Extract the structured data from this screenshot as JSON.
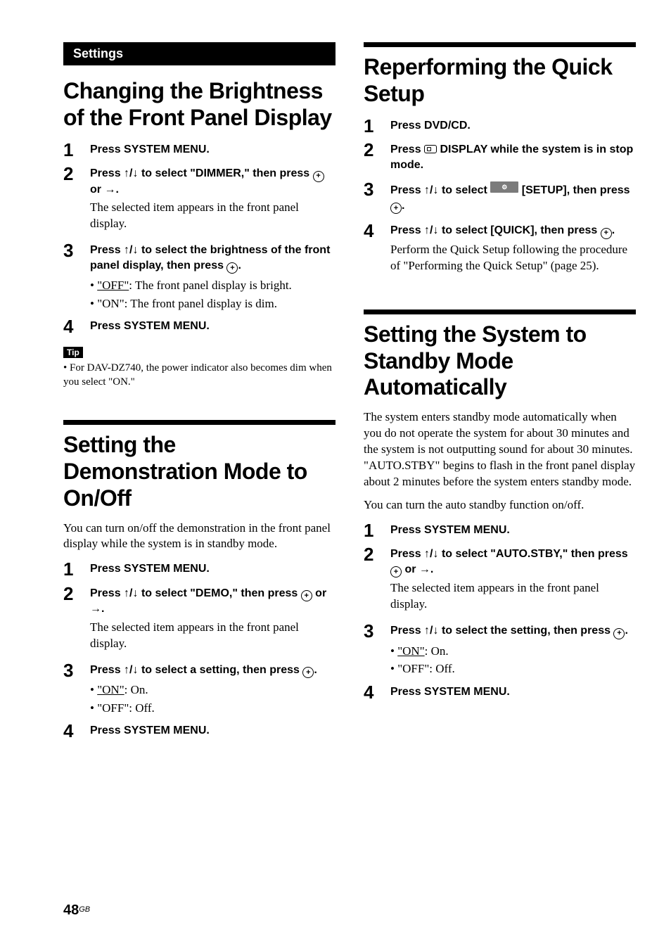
{
  "tab": {
    "label": "Settings"
  },
  "left": {
    "sec1": {
      "title": "Changing the Brightness of the Front Panel Display",
      "steps": {
        "s1": {
          "head": "Press SYSTEM MENU."
        },
        "s2": {
          "head_a": "Press ",
          "head_b": " to select \"DIMMER,\" then press ",
          "head_c": " or ",
          "head_d": ".",
          "arrows": "↑/↓",
          "right_arrow": "→",
          "desc": "The selected item appears in the front panel display."
        },
        "s3": {
          "head_a": "Press ",
          "head_b": " to select the brightness of the front panel display, then press ",
          "head_c": ".",
          "arrows": "↑/↓",
          "b1_u": "\"OFF\"",
          "b1_rest": ": The front panel display is bright.",
          "b2": "\"ON\": The front panel display is dim."
        },
        "s4": {
          "head": "Press SYSTEM MENU."
        }
      },
      "tip_label": "Tip",
      "tip_text": "For DAV-DZ740, the power indicator also becomes dim when you select \"ON.\""
    },
    "sec2": {
      "title": "Setting the Demonstration Mode to On/Off",
      "intro": "You can turn on/off the demonstration in the front panel display while the system is in standby mode.",
      "steps": {
        "s1": {
          "head": "Press SYSTEM MENU."
        },
        "s2": {
          "head_a": "Press ",
          "head_b": " to select \"DEMO,\" then press ",
          "head_c": " or ",
          "head_d": ".",
          "arrows": "↑/↓",
          "right_arrow": "→",
          "desc": "The selected item appears in the front panel display."
        },
        "s3": {
          "head_a": "Press ",
          "head_b": " to select a setting, then press ",
          "head_c": ".",
          "arrows": "↑/↓",
          "b1_u": "\"ON\"",
          "b1_rest": ": On.",
          "b2": "\"OFF\": Off."
        },
        "s4": {
          "head": "Press SYSTEM MENU."
        }
      }
    }
  },
  "right": {
    "sec1": {
      "title": "Reperforming the Quick Setup",
      "steps": {
        "s1": {
          "head": "Press DVD/CD."
        },
        "s2": {
          "head_a": "Press ",
          "head_b": " DISPLAY while the system is in stop mode."
        },
        "s3": {
          "head_a": "Press ",
          "head_b": " to select ",
          "head_c": " [SETUP], then press ",
          "head_d": ".",
          "arrows": "↑/↓"
        },
        "s4": {
          "head_a": "Press ",
          "head_b": " to select [QUICK], then press ",
          "head_c": ".",
          "arrows": "↑/↓",
          "desc": "Perform the Quick Setup following the procedure of \"Performing the Quick Setup\" (page 25)."
        }
      }
    },
    "sec2": {
      "title": "Setting the System to Standby Mode Automatically",
      "intro1": "The system enters standby mode automatically when you do not operate the system for about 30 minutes and the system is not outputting sound for about 30 minutes. \"AUTO.STBY\" begins to flash in the front panel display about 2 minutes before the system enters standby mode.",
      "intro2": "You can turn the auto standby function on/off.",
      "steps": {
        "s1": {
          "head": "Press SYSTEM MENU."
        },
        "s2": {
          "head_a": "Press ",
          "head_b": " to select \"AUTO.STBY,\" then press ",
          "head_c": " or ",
          "head_d": ".",
          "arrows": "↑/↓",
          "right_arrow": "→",
          "desc": "The selected item appears in the front panel display."
        },
        "s3": {
          "head_a": "Press ",
          "head_b": " to select the setting, then press ",
          "head_c": ".",
          "arrows": "↑/↓",
          "b1_u": "\"ON\"",
          "b1_rest": ": On.",
          "b2": "\"OFF\": Off."
        },
        "s4": {
          "head": "Press SYSTEM MENU."
        }
      }
    }
  },
  "footer": {
    "page": "48",
    "gb": "GB"
  }
}
